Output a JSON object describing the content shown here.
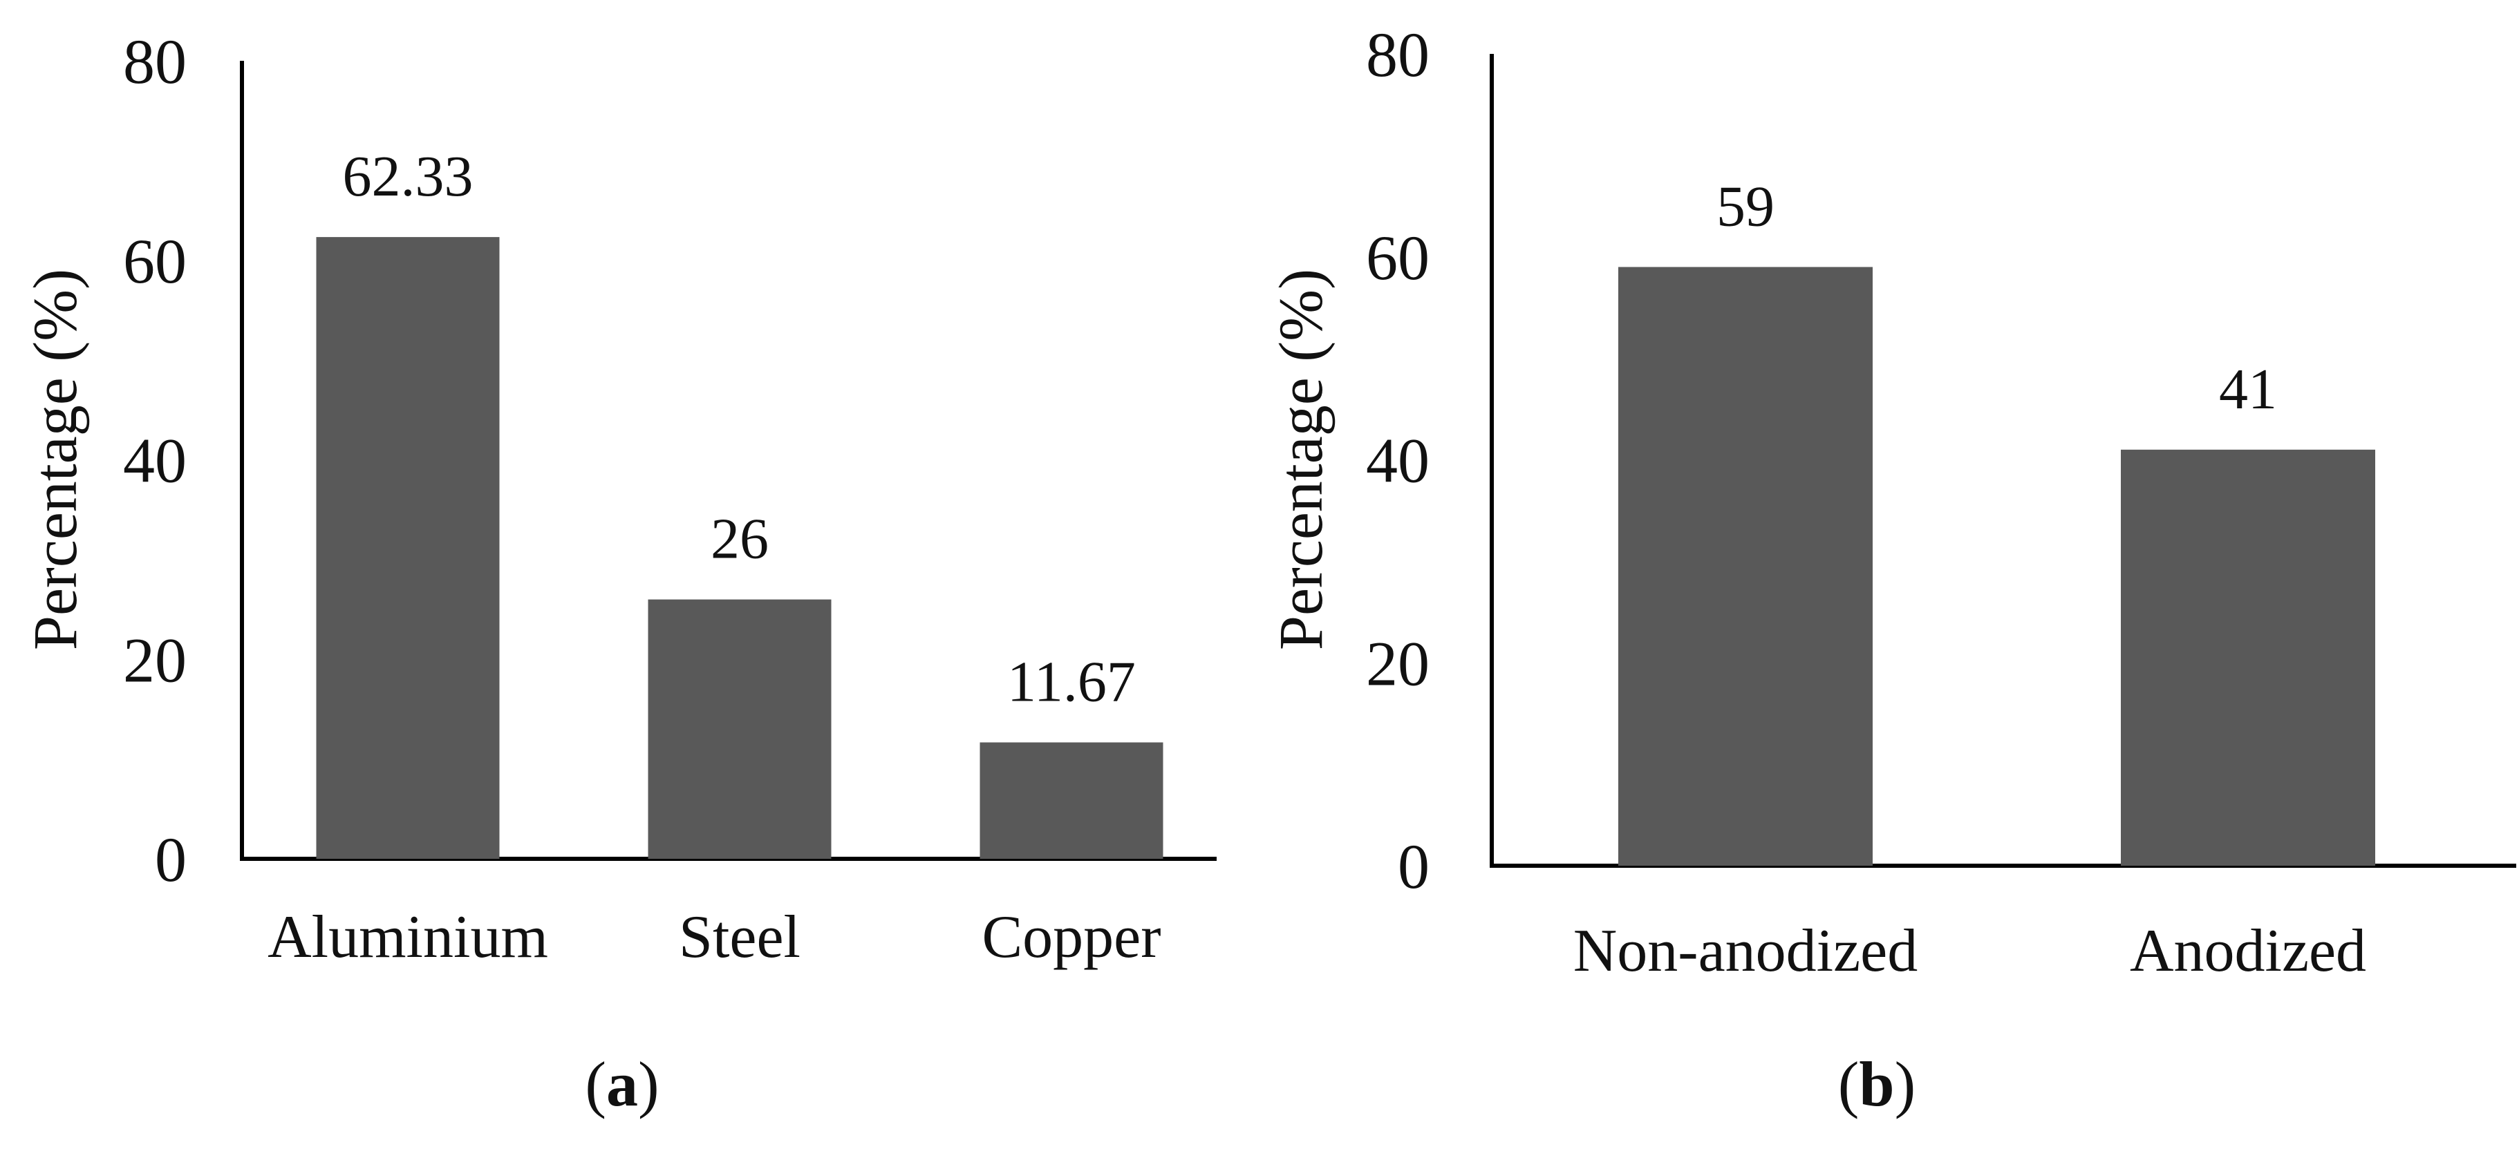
{
  "colors": {
    "bar": "#595959",
    "axis": "#000000",
    "text": "#111111",
    "background": "#ffffff"
  },
  "chart_data": [
    {
      "type": "bar",
      "panel_label": "a",
      "title": "",
      "xlabel": "",
      "ylabel": "Percentage (%)",
      "categories": [
        "Aluminium",
        "Steel",
        "Copper"
      ],
      "values": [
        62.33,
        26,
        11.67
      ],
      "value_labels": [
        "62.33",
        "26",
        "11.67"
      ],
      "ylim": [
        0,
        80
      ],
      "yticks": [
        0,
        20,
        40,
        60,
        80
      ],
      "ytick_labels": [
        "0",
        "20",
        "40",
        "60",
        "80"
      ],
      "grid": false,
      "legend": "none"
    },
    {
      "type": "bar",
      "panel_label": "b",
      "title": "",
      "xlabel": "",
      "ylabel": "Percentage (%)",
      "categories": [
        "Non-anodized",
        "Anodized"
      ],
      "values": [
        59,
        41
      ],
      "value_labels": [
        "59",
        "41"
      ],
      "ylim": [
        0,
        80
      ],
      "yticks": [
        0,
        20,
        40,
        60,
        80
      ],
      "ytick_labels": [
        "0",
        "20",
        "40",
        "60",
        "80"
      ],
      "grid": false,
      "legend": "none"
    }
  ]
}
